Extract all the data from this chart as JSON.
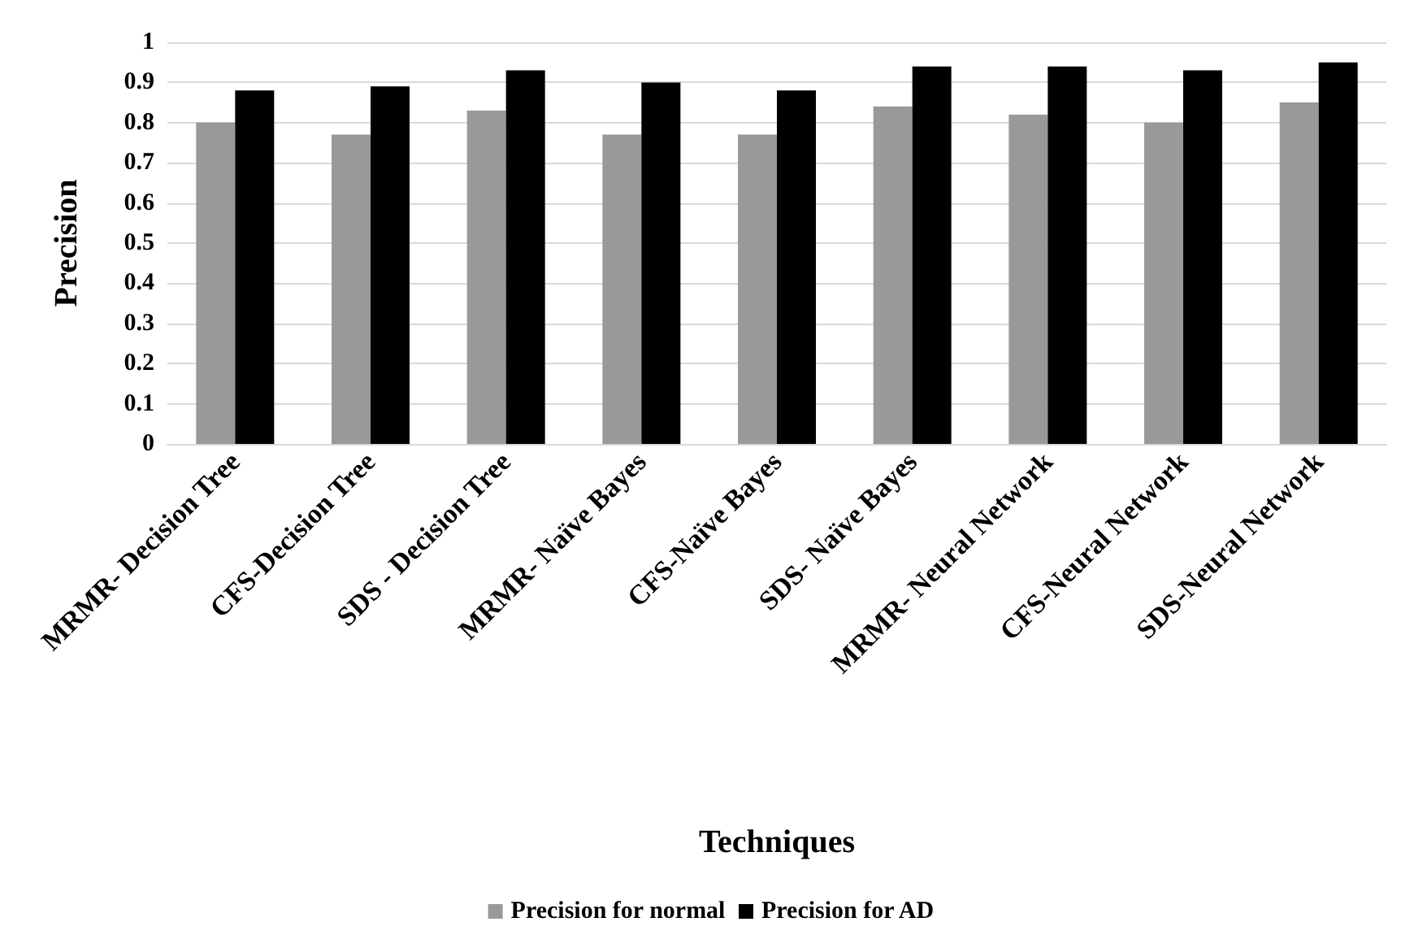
{
  "chart_data": {
    "type": "bar",
    "xlabel": "Techniques",
    "ylabel": "Precision",
    "categories": [
      "MRMR- Decision Tree",
      "CFS-Decision Tree",
      "SDS - Decision Tree",
      "MRMR- Naïve Bayes",
      "CFS-Naïve Bayes",
      "SDS- Naïve Bayes",
      "MRMR- Neural Network",
      "CFS-Neural Network",
      "SDS-Neural Network"
    ],
    "series": [
      {
        "name": "Precision for normal",
        "color": "#999999",
        "values": [
          0.8,
          0.77,
          0.83,
          0.77,
          0.77,
          0.84,
          0.82,
          0.8,
          0.85
        ]
      },
      {
        "name": "Precision for AD",
        "color": "#000000",
        "values": [
          0.88,
          0.89,
          0.93,
          0.9,
          0.88,
          0.94,
          0.94,
          0.93,
          0.95
        ]
      }
    ],
    "ylim": [
      0,
      1
    ],
    "yticks": [
      0,
      0.1,
      0.2,
      0.3,
      0.4,
      0.5,
      0.6,
      0.7,
      0.8,
      0.9,
      1
    ],
    "grid": "y",
    "legend": "bottom"
  }
}
